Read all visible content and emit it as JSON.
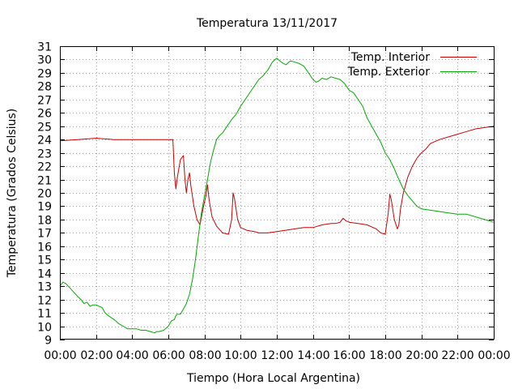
{
  "chart_data": {
    "type": "line",
    "title": "Temperatura 13/11/2017",
    "xlabel": "Tiempo (Hora Local Argentina)",
    "ylabel": "Temperatura (Grados Celsius)",
    "xlim": [
      "00:00",
      "24:00"
    ],
    "ylim": [
      9,
      31
    ],
    "x_ticks": [
      "00:00",
      "02:00",
      "04:00",
      "06:00",
      "08:00",
      "10:00",
      "12:00",
      "14:00",
      "16:00",
      "18:00",
      "20:00",
      "22:00",
      "00:00"
    ],
    "y_ticks": [
      9,
      10,
      11,
      12,
      13,
      14,
      15,
      16,
      17,
      18,
      19,
      20,
      21,
      22,
      23,
      24,
      25,
      26,
      27,
      28,
      29,
      30,
      31
    ],
    "grid": true,
    "legend_position": "top-right",
    "series": [
      {
        "name": "Temp. Interior",
        "color": "#cc0000",
        "points": [
          [
            "00:00",
            23.9
          ],
          [
            "01:00",
            24.0
          ],
          [
            "02:00",
            24.1
          ],
          [
            "03:00",
            24.0
          ],
          [
            "04:00",
            24.0
          ],
          [
            "05:00",
            24.0
          ],
          [
            "06:00",
            24.0
          ],
          [
            "06:15",
            24.0
          ],
          [
            "06:20",
            21.5
          ],
          [
            "06:25",
            20.3
          ],
          [
            "06:30",
            21.2
          ],
          [
            "06:40",
            22.5
          ],
          [
            "06:50",
            22.8
          ],
          [
            "06:55",
            21.0
          ],
          [
            "07:00",
            20.0
          ],
          [
            "07:05",
            21.0
          ],
          [
            "07:10",
            21.5
          ],
          [
            "07:15",
            20.5
          ],
          [
            "07:25",
            19.0
          ],
          [
            "07:35",
            18.0
          ],
          [
            "07:45",
            17.6
          ],
          [
            "07:55",
            18.8
          ],
          [
            "08:05",
            19.8
          ],
          [
            "08:10",
            20.6
          ],
          [
            "08:15",
            19.5
          ],
          [
            "08:25",
            18.2
          ],
          [
            "08:40",
            17.5
          ],
          [
            "09:00",
            17.0
          ],
          [
            "09:20",
            16.9
          ],
          [
            "09:30",
            18.0
          ],
          [
            "09:35",
            20.0
          ],
          [
            "09:40",
            19.5
          ],
          [
            "09:50",
            18.0
          ],
          [
            "10:00",
            17.4
          ],
          [
            "10:20",
            17.2
          ],
          [
            "10:45",
            17.1
          ],
          [
            "11:00",
            17.0
          ],
          [
            "11:30",
            17.0
          ],
          [
            "12:00",
            17.1
          ],
          [
            "12:30",
            17.2
          ],
          [
            "13:00",
            17.3
          ],
          [
            "13:30",
            17.4
          ],
          [
            "14:00",
            17.4
          ],
          [
            "14:30",
            17.6
          ],
          [
            "15:00",
            17.7
          ],
          [
            "15:15",
            17.7
          ],
          [
            "15:30",
            17.8
          ],
          [
            "15:40",
            18.1
          ],
          [
            "15:50",
            17.9
          ],
          [
            "16:00",
            17.8
          ],
          [
            "16:30",
            17.7
          ],
          [
            "17:00",
            17.6
          ],
          [
            "17:30",
            17.3
          ],
          [
            "17:45",
            17.0
          ],
          [
            "18:00",
            16.9
          ],
          [
            "18:10",
            18.5
          ],
          [
            "18:15",
            19.9
          ],
          [
            "18:20",
            19.5
          ],
          [
            "18:30",
            18.0
          ],
          [
            "18:40",
            17.3
          ],
          [
            "18:45",
            17.6
          ],
          [
            "18:50",
            18.7
          ],
          [
            "19:00",
            20.0
          ],
          [
            "19:15",
            21.2
          ],
          [
            "19:30",
            22.0
          ],
          [
            "19:45",
            22.6
          ],
          [
            "20:00",
            23.0
          ],
          [
            "20:15",
            23.3
          ],
          [
            "20:30",
            23.7
          ],
          [
            "21:00",
            24.0
          ],
          [
            "21:30",
            24.2
          ],
          [
            "22:00",
            24.4
          ],
          [
            "22:30",
            24.6
          ],
          [
            "23:00",
            24.8
          ],
          [
            "23:30",
            24.9
          ],
          [
            "24:00",
            25.0
          ]
        ]
      },
      {
        "name": "Temp. Exterior",
        "color": "#00aa00",
        "points": [
          [
            "00:00",
            13.0
          ],
          [
            "00:10",
            13.3
          ],
          [
            "00:20",
            13.2
          ],
          [
            "00:40",
            12.7
          ],
          [
            "01:00",
            12.2
          ],
          [
            "01:10",
            12.0
          ],
          [
            "01:20",
            11.7
          ],
          [
            "01:30",
            11.8
          ],
          [
            "01:40",
            11.5
          ],
          [
            "01:50",
            11.6
          ],
          [
            "02:00",
            11.6
          ],
          [
            "02:10",
            11.5
          ],
          [
            "02:20",
            11.4
          ],
          [
            "02:30",
            11.0
          ],
          [
            "02:40",
            10.8
          ],
          [
            "03:00",
            10.5
          ],
          [
            "03:15",
            10.2
          ],
          [
            "03:30",
            10.0
          ],
          [
            "03:45",
            9.8
          ],
          [
            "04:00",
            9.8
          ],
          [
            "04:15",
            9.8
          ],
          [
            "04:30",
            9.7
          ],
          [
            "04:45",
            9.7
          ],
          [
            "05:00",
            9.6
          ],
          [
            "05:15",
            9.5
          ],
          [
            "05:20",
            9.6
          ],
          [
            "05:30",
            9.6
          ],
          [
            "05:45",
            9.7
          ],
          [
            "06:00",
            10.0
          ],
          [
            "06:10",
            10.4
          ],
          [
            "06:20",
            10.5
          ],
          [
            "06:25",
            10.8
          ],
          [
            "06:30",
            10.9
          ],
          [
            "06:40",
            10.9
          ],
          [
            "06:50",
            11.3
          ],
          [
            "07:00",
            11.7
          ],
          [
            "07:10",
            12.4
          ],
          [
            "07:20",
            13.5
          ],
          [
            "07:30",
            15.0
          ],
          [
            "07:40",
            16.8
          ],
          [
            "07:50",
            18.5
          ],
          [
            "08:00",
            19.8
          ],
          [
            "08:10",
            21.0
          ],
          [
            "08:20",
            22.3
          ],
          [
            "08:30",
            23.2
          ],
          [
            "08:40",
            24.0
          ],
          [
            "08:50",
            24.3
          ],
          [
            "09:00",
            24.5
          ],
          [
            "09:15",
            25.0
          ],
          [
            "09:30",
            25.5
          ],
          [
            "09:45",
            25.9
          ],
          [
            "10:00",
            26.5
          ],
          [
            "10:15",
            27.0
          ],
          [
            "10:30",
            27.5
          ],
          [
            "10:45",
            28.0
          ],
          [
            "11:00",
            28.5
          ],
          [
            "11:15",
            28.8
          ],
          [
            "11:30",
            29.2
          ],
          [
            "11:45",
            29.8
          ],
          [
            "12:00",
            30.1
          ],
          [
            "12:15",
            29.8
          ],
          [
            "12:30",
            29.6
          ],
          [
            "12:45",
            29.9
          ],
          [
            "13:00",
            29.8
          ],
          [
            "13:15",
            29.7
          ],
          [
            "13:30",
            29.5
          ],
          [
            "13:45",
            29.0
          ],
          [
            "14:00",
            28.5
          ],
          [
            "14:10",
            28.3
          ],
          [
            "14:20",
            28.4
          ],
          [
            "14:30",
            28.6
          ],
          [
            "14:45",
            28.5
          ],
          [
            "15:00",
            28.7
          ],
          [
            "15:15",
            28.6
          ],
          [
            "15:30",
            28.5
          ],
          [
            "15:45",
            28.2
          ],
          [
            "16:00",
            27.7
          ],
          [
            "16:15",
            27.5
          ],
          [
            "16:30",
            27.0
          ],
          [
            "16:45",
            26.5
          ],
          [
            "17:00",
            25.6
          ],
          [
            "17:15",
            25.0
          ],
          [
            "17:30",
            24.4
          ],
          [
            "17:45",
            23.8
          ],
          [
            "18:00",
            23.0
          ],
          [
            "18:15",
            22.5
          ],
          [
            "18:30",
            21.8
          ],
          [
            "18:45",
            21.0
          ],
          [
            "19:00",
            20.3
          ],
          [
            "19:15",
            19.8
          ],
          [
            "19:30",
            19.4
          ],
          [
            "19:45",
            19.0
          ],
          [
            "20:00",
            18.8
          ],
          [
            "20:30",
            18.7
          ],
          [
            "21:00",
            18.6
          ],
          [
            "21:30",
            18.5
          ],
          [
            "22:00",
            18.4
          ],
          [
            "22:30",
            18.4
          ],
          [
            "23:00",
            18.2
          ],
          [
            "23:30",
            18.0
          ],
          [
            "24:00",
            17.8
          ]
        ]
      }
    ]
  }
}
